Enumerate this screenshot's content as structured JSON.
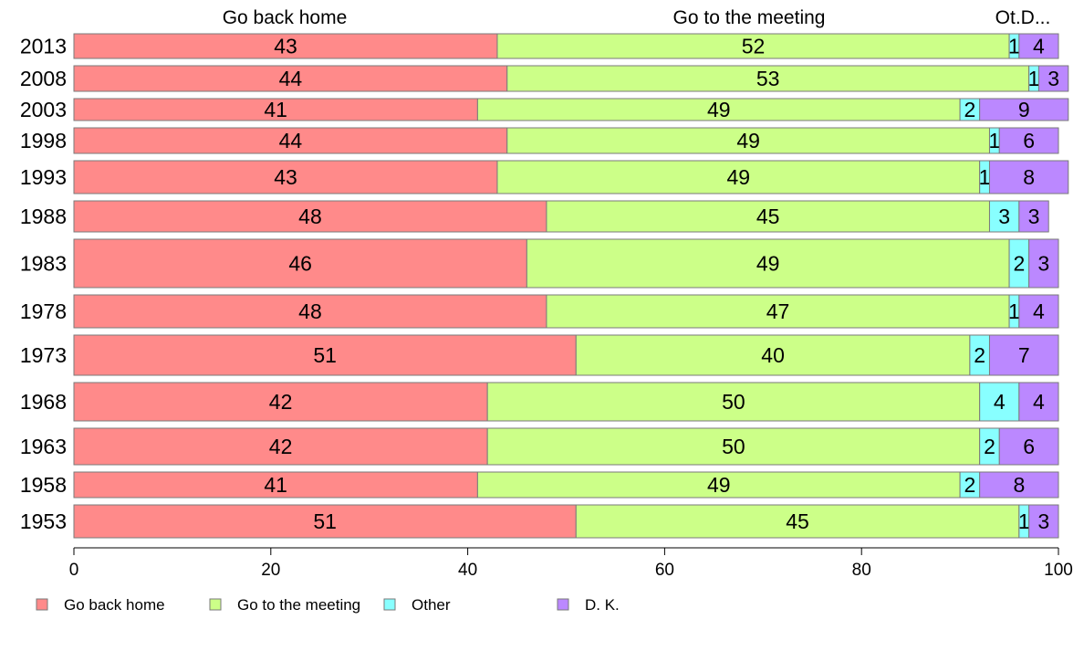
{
  "chart_data": {
    "type": "bar",
    "orientation": "horizontal",
    "stacked": true,
    "title": "",
    "xlabel": "",
    "ylabel": "",
    "xlim": [
      0,
      100
    ],
    "x_ticks": [
      "0",
      "20",
      "40",
      "60",
      "80",
      "100"
    ],
    "grid": false,
    "legend_position": "bottom",
    "column_headers": [
      "Go back home",
      "Go to the meeting",
      "Ot.D..."
    ],
    "categories": [
      "2013",
      "2008",
      "2003",
      "1998",
      "1993",
      "1988",
      "1983",
      "1978",
      "1973",
      "1968",
      "1963",
      "1958",
      "1953"
    ],
    "series": [
      {
        "name": "Go back home",
        "color": "#ff8a8a",
        "values": [
          43,
          44,
          41,
          44,
          43,
          48,
          46,
          48,
          51,
          42,
          42,
          41,
          51
        ]
      },
      {
        "name": "Go to the meeting",
        "color": "#ccff88",
        "values": [
          52,
          53,
          49,
          49,
          49,
          45,
          49,
          47,
          40,
          50,
          50,
          49,
          45
        ]
      },
      {
        "name": "Other",
        "color": "#88ffff",
        "values": [
          1,
          1,
          2,
          1,
          1,
          3,
          2,
          1,
          2,
          4,
          2,
          2,
          1
        ]
      },
      {
        "name": "D. K.",
        "color": "#bb88ff",
        "values": [
          4,
          3,
          9,
          6,
          8,
          3,
          3,
          4,
          7,
          4,
          6,
          8,
          3
        ]
      }
    ],
    "legend_labels": [
      "Go back home",
      "Go to the meeting",
      "Other",
      "D. K."
    ]
  }
}
